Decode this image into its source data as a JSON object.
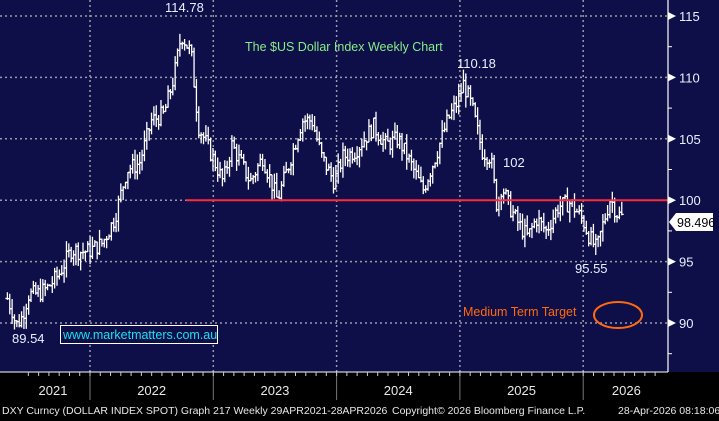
{
  "chart_data": {
    "type": "ohlc",
    "title": "The $US Dollar Index Weekly Chart",
    "ylim": [
      86,
      116.3
    ],
    "y_ticks": [
      90,
      95,
      100,
      105,
      110,
      115
    ],
    "x_range": [
      2021.33,
      2026.7
    ],
    "x_ticks": [
      {
        "label": "2021",
        "at": 2021.7
      },
      {
        "label": "2022",
        "at": 2022.5
      },
      {
        "label": "2023",
        "at": 2023.5
      },
      {
        "label": "2024",
        "at": 2024.5
      },
      {
        "label": "2025",
        "at": 2025.5
      },
      {
        "label": "2026",
        "at": 2026.35
      }
    ],
    "year_boundaries": [
      2022,
      2023,
      2024,
      2025,
      2026
    ],
    "series_anchors": [
      [
        2021.33,
        92
      ],
      [
        2021.37,
        91
      ],
      [
        2021.4,
        89.8
      ],
      [
        2021.45,
        90.5
      ],
      [
        2021.5,
        92.3
      ],
      [
        2021.58,
        92.4
      ],
      [
        2021.65,
        92.8
      ],
      [
        2021.75,
        94
      ],
      [
        2021.85,
        96
      ],
      [
        2021.93,
        95.8
      ],
      [
        2022.0,
        95.9
      ],
      [
        2022.1,
        96.5
      ],
      [
        2022.2,
        98.5
      ],
      [
        2022.3,
        102.5
      ],
      [
        2022.4,
        103
      ],
      [
        2022.5,
        106.5
      ],
      [
        2022.6,
        107
      ],
      [
        2022.68,
        110
      ],
      [
        2022.74,
        113.5
      ],
      [
        2022.82,
        112
      ],
      [
        2022.88,
        106
      ],
      [
        2022.95,
        104.5
      ],
      [
        2023.08,
        101.5
      ],
      [
        2023.15,
        104.5
      ],
      [
        2023.3,
        101.5
      ],
      [
        2023.4,
        103.5
      ],
      [
        2023.52,
        100
      ],
      [
        2023.6,
        102.5
      ],
      [
        2023.72,
        106.5
      ],
      [
        2023.8,
        106.5
      ],
      [
        2023.88,
        103.5
      ],
      [
        2023.98,
        101.5
      ],
      [
        2024.05,
        103.5
      ],
      [
        2024.15,
        104
      ],
      [
        2024.3,
        106
      ],
      [
        2024.4,
        104.5
      ],
      [
        2024.5,
        105
      ],
      [
        2024.6,
        103
      ],
      [
        2024.7,
        100.8
      ],
      [
        2024.8,
        103.5
      ],
      [
        2024.9,
        106.5
      ],
      [
        2024.98,
        108
      ],
      [
        2025.03,
        109.5
      ],
      [
        2025.1,
        107.5
      ],
      [
        2025.18,
        104
      ],
      [
        2025.25,
        103.5
      ],
      [
        2025.3,
        99.5
      ],
      [
        2025.34,
        101.2
      ],
      [
        2025.4,
        99.5
      ],
      [
        2025.48,
        98
      ],
      [
        2025.55,
        97
      ],
      [
        2025.62,
        98.5
      ],
      [
        2025.7,
        97.5
      ],
      [
        2025.8,
        99.5
      ],
      [
        2025.9,
        99.8
      ],
      [
        2026.0,
        98.3
      ],
      [
        2026.05,
        97
      ],
      [
        2026.11,
        96
      ],
      [
        2026.16,
        98
      ],
      [
        2026.22,
        100.2
      ],
      [
        2026.27,
        99
      ],
      [
        2026.33,
        98.5
      ]
    ],
    "last_price": "98.496",
    "horizontal_line": {
      "value": 100,
      "from": 2022.78,
      "color": "#ff2a3c"
    },
    "annotations": {
      "peak_2022": "114.78",
      "peak_2025": "110.18",
      "bounce": "102",
      "low_2026": "95.55",
      "low_2021": "89.54",
      "target_label": "Medium Term Target",
      "target_value": 90
    },
    "watermark": "www.marketmatters.com.au",
    "colors": {
      "background": "#0e0e48",
      "bars": "#ffffff",
      "title": "#86ee86",
      "target": "#ff6a10",
      "watermark": "#18e0f0"
    }
  },
  "footer": {
    "left": "DXY Curncy (DOLLAR INDEX SPOT) Graph 217 Weekly 29APR2021-28APR2026",
    "center": "Copyright© 2026 Bloomberg Finance L.P.",
    "right": "28-Apr-2026 08:18:06"
  }
}
